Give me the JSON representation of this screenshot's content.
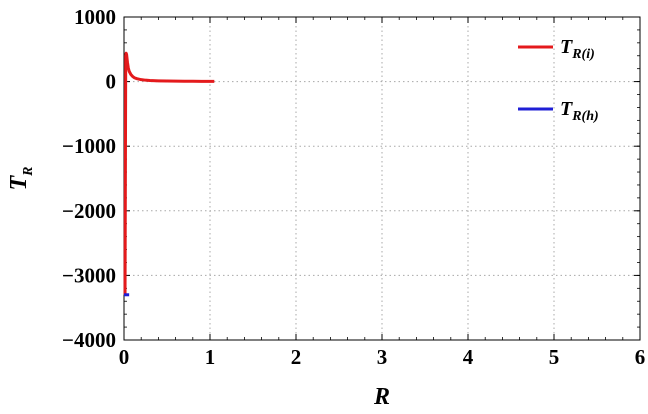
{
  "chart_data": {
    "type": "line",
    "title": "",
    "xlabel": "R",
    "ylabel": {
      "main": "T",
      "sub": "R"
    },
    "xlim": [
      0,
      6
    ],
    "ylim": [
      -4000,
      1000
    ],
    "xticks": [
      0,
      1,
      2,
      3,
      4,
      5,
      6
    ],
    "xtick_labels": [
      "0",
      "1",
      "2",
      "3",
      "4",
      "5",
      "6"
    ],
    "yticks": [
      1000,
      0,
      -1000,
      -2000,
      -3000,
      -4000
    ],
    "ytick_labels": [
      "1000",
      "0",
      "−1000",
      "−2000",
      "−3000",
      "−4000"
    ],
    "grid": true,
    "grid_style": "dotted",
    "legend_position": "top-right",
    "series": [
      {
        "name": {
          "main": "T",
          "sub": "R(i)"
        },
        "color": "#e41a1c",
        "x": [
          0.012,
          0.02,
          0.025,
          0.03,
          0.04,
          0.05,
          0.06,
          0.08,
          0.1,
          0.12,
          0.15,
          0.2,
          0.25,
          0.3,
          0.4,
          0.5,
          0.6,
          0.7,
          0.8,
          0.9,
          1.0,
          1.05
        ],
        "y": [
          -3300,
          400,
          440,
          420,
          300,
          210,
          160,
          110,
          80,
          60,
          45,
          30,
          22,
          17,
          12,
          9,
          7,
          6,
          5,
          4,
          4,
          3
        ]
      },
      {
        "name": {
          "main": "T",
          "sub": "R(h)"
        },
        "color": "#1f1fd6",
        "x": [
          0.0,
          0.06
        ],
        "y": [
          -3300,
          -3300
        ]
      }
    ]
  }
}
